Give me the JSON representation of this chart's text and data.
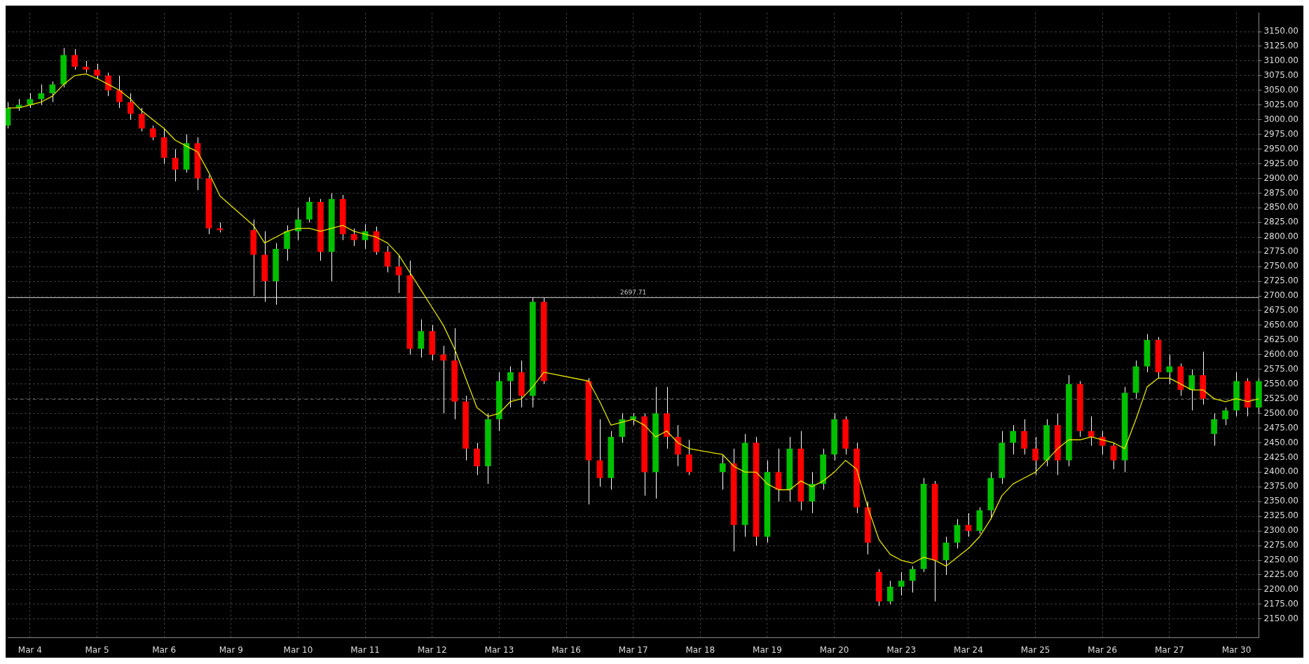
{
  "chart_data": {
    "type": "candlestick",
    "categories": [
      null,
      null,
      "Mar 4",
      null,
      null,
      null,
      null,
      null,
      "Mar 5",
      null,
      null,
      null,
      null,
      null,
      "Mar 6",
      null,
      null,
      null,
      null,
      null,
      "Mar 9",
      null,
      null,
      null,
      null,
      null,
      "Mar 10",
      null,
      null,
      null,
      null,
      null,
      "Mar 11",
      null,
      null,
      null,
      null,
      null,
      "Mar 12",
      null,
      null,
      null,
      null,
      null,
      "Mar 13",
      null,
      null,
      null,
      null,
      null,
      "Mar 16",
      null,
      null,
      null,
      null,
      null,
      "Mar 17",
      null,
      null,
      null,
      null,
      null,
      "Mar 18",
      null,
      null,
      null,
      null,
      null,
      "Mar 19",
      null,
      null,
      null,
      null,
      null,
      "Mar 20",
      null,
      null,
      null,
      null,
      null,
      "Mar 23",
      null,
      null,
      null,
      null,
      null,
      "Mar 24",
      null,
      null,
      null,
      null,
      null,
      "Mar 25",
      null,
      null,
      null,
      null,
      null,
      "Mar 26",
      null,
      null,
      null,
      null,
      null,
      "Mar 27",
      null,
      null,
      null,
      null,
      null,
      "Mar 30",
      null,
      null
    ],
    "ohlc": [
      [
        2990,
        3030,
        2985,
        3020
      ],
      [
        3020,
        3035,
        3015,
        3025
      ],
      [
        3025,
        3045,
        3020,
        3035
      ],
      [
        3035,
        3060,
        3025,
        3045
      ],
      [
        3045,
        3065,
        3030,
        3060
      ],
      [
        3060,
        3122,
        3055,
        3110
      ],
      [
        3110,
        3120,
        3085,
        3090
      ],
      [
        3090,
        3100,
        3080,
        3085
      ],
      [
        3085,
        3095,
        3070,
        3075
      ],
      [
        3075,
        3080,
        3040,
        3050
      ],
      [
        3050,
        3075,
        3020,
        3030
      ],
      [
        3030,
        3045,
        3000,
        3010
      ],
      [
        3010,
        3020,
        2980,
        2985
      ],
      [
        2985,
        2990,
        2965,
        2970
      ],
      [
        2970,
        2985,
        2925,
        2935
      ],
      [
        2935,
        2950,
        2895,
        2915
      ],
      [
        2915,
        2975,
        2910,
        2960
      ],
      [
        2960,
        2970,
        2880,
        2900
      ],
      [
        2900,
        2905,
        2805,
        2815
      ],
      [
        2815,
        2825,
        2808,
        2812
      ],
      null,
      null,
      [
        2812,
        2830,
        2700,
        2770
      ],
      [
        2770,
        2810,
        2690,
        2725
      ],
      [
        2725,
        2790,
        2685,
        2780
      ],
      [
        2780,
        2820,
        2760,
        2810
      ],
      [
        2810,
        2850,
        2795,
        2830
      ],
      [
        2830,
        2868,
        2825,
        2860
      ],
      [
        2860,
        2865,
        2760,
        2775
      ],
      [
        2775,
        2875,
        2725,
        2865
      ],
      [
        2865,
        2872,
        2795,
        2805
      ],
      [
        2805,
        2815,
        2785,
        2795
      ],
      [
        2795,
        2822,
        2780,
        2810
      ],
      [
        2810,
        2818,
        2770,
        2775
      ],
      [
        2775,
        2785,
        2740,
        2750
      ],
      [
        2750,
        2770,
        2705,
        2735
      ],
      [
        2735,
        2760,
        2600,
        2610
      ],
      [
        2610,
        2660,
        2595,
        2640
      ],
      [
        2640,
        2650,
        2590,
        2600
      ],
      [
        2600,
        2615,
        2500,
        2590
      ],
      [
        2590,
        2645,
        2490,
        2520
      ],
      [
        2520,
        2530,
        2420,
        2440
      ],
      [
        2440,
        2450,
        2395,
        2410
      ],
      [
        2410,
        2500,
        2380,
        2490
      ],
      [
        2490,
        2570,
        2470,
        2555
      ],
      [
        2555,
        2580,
        2510,
        2570
      ],
      [
        2570,
        2590,
        2510,
        2530
      ],
      [
        2530,
        2697,
        2510,
        2690
      ],
      [
        2690,
        2697,
        2550,
        2555
      ],
      null,
      null,
      null,
      [
        2555,
        2560,
        2345,
        2420
      ],
      [
        2420,
        2490,
        2375,
        2390
      ],
      [
        2390,
        2470,
        2370,
        2460
      ],
      [
        2460,
        2500,
        2450,
        2490
      ],
      [
        2490,
        2500,
        2480,
        2495
      ],
      [
        2495,
        2500,
        2360,
        2400
      ],
      [
        2400,
        2545,
        2355,
        2500
      ],
      [
        2500,
        2545,
        2440,
        2460
      ],
      [
        2460,
        2480,
        2410,
        2430
      ],
      [
        2430,
        2455,
        2395,
        2400
      ],
      null,
      null,
      [
        2400,
        2430,
        2370,
        2415
      ],
      [
        2415,
        2440,
        2265,
        2310
      ],
      [
        2310,
        2465,
        2290,
        2450
      ],
      [
        2450,
        2460,
        2275,
        2290
      ],
      [
        2290,
        2420,
        2280,
        2400
      ],
      [
        2400,
        2440,
        2350,
        2370
      ],
      [
        2370,
        2460,
        2350,
        2440
      ],
      [
        2440,
        2470,
        2335,
        2350
      ],
      [
        2350,
        2400,
        2330,
        2380
      ],
      [
        2380,
        2440,
        2370,
        2430
      ],
      [
        2430,
        2500,
        2420,
        2490
      ],
      [
        2490,
        2495,
        2430,
        2440
      ],
      [
        2440,
        2450,
        2330,
        2340
      ],
      [
        2340,
        2350,
        2260,
        2280
      ],
      [
        2230,
        2235,
        2172,
        2180
      ],
      [
        2180,
        2215,
        2175,
        2205
      ],
      [
        2205,
        2230,
        2190,
        2215
      ],
      [
        2215,
        2240,
        2195,
        2235
      ],
      [
        2235,
        2390,
        2230,
        2380
      ],
      [
        2380,
        2385,
        2180,
        2250
      ],
      [
        2250,
        2290,
        2225,
        2280
      ],
      [
        2280,
        2320,
        2270,
        2310
      ],
      [
        2310,
        2330,
        2290,
        2300
      ],
      [
        2300,
        2340,
        2295,
        2335
      ],
      [
        2335,
        2400,
        2320,
        2390
      ],
      [
        2390,
        2470,
        2380,
        2450
      ],
      [
        2450,
        2480,
        2430,
        2470
      ],
      [
        2470,
        2490,
        2430,
        2440
      ],
      [
        2440,
        2460,
        2395,
        2420
      ],
      [
        2420,
        2490,
        2410,
        2480
      ],
      [
        2480,
        2500,
        2395,
        2420
      ],
      [
        2420,
        2565,
        2410,
        2550
      ],
      [
        2550,
        2555,
        2460,
        2470
      ],
      [
        2470,
        2495,
        2445,
        2460
      ],
      [
        2460,
        2470,
        2430,
        2445
      ],
      [
        2445,
        2450,
        2405,
        2420
      ],
      [
        2420,
        2545,
        2400,
        2535
      ],
      [
        2535,
        2590,
        2525,
        2580
      ],
      [
        2580,
        2635,
        2570,
        2625
      ],
      [
        2625,
        2630,
        2560,
        2570
      ],
      [
        2570,
        2600,
        2550,
        2580
      ],
      [
        2580,
        2585,
        2530,
        2540
      ],
      [
        2540,
        2575,
        2505,
        2565
      ],
      [
        2565,
        2605,
        2515,
        2525
      ],
      [
        2465,
        2500,
        2445,
        2490
      ],
      [
        2490,
        2510,
        2480,
        2505
      ],
      [
        2505,
        2570,
        2495,
        2555
      ],
      [
        2555,
        2560,
        2495,
        2510
      ],
      [
        2510,
        2560,
        2500,
        2555
      ]
    ],
    "series": [
      {
        "type": "line",
        "color": "#e6e600",
        "values": [
          3020,
          3020,
          3025,
          3030,
          3040,
          3060,
          3075,
          3078,
          3070,
          3060,
          3050,
          3035,
          3015,
          3000,
          2985,
          2965,
          2955,
          2945,
          2910,
          2870,
          null,
          null,
          2820,
          2790,
          2800,
          2810,
          2815,
          2815,
          2810,
          2815,
          2820,
          2810,
          2805,
          2800,
          2790,
          2770,
          2740,
          2710,
          2680,
          2650,
          2610,
          2560,
          2510,
          2495,
          2500,
          2520,
          2525,
          2545,
          2570,
          null,
          null,
          null,
          2555,
          2520,
          2480,
          2485,
          2490,
          2480,
          2460,
          2470,
          2450,
          2440,
          null,
          null,
          2430,
          2410,
          2400,
          2400,
          2380,
          2370,
          2370,
          2385,
          2375,
          2385,
          2400,
          2420,
          2405,
          2340,
          2285,
          2260,
          2250,
          2245,
          2255,
          2250,
          2240,
          2255,
          2270,
          2290,
          2320,
          2360,
          2380,
          2390,
          2400,
          2420,
          2440,
          2455,
          2455,
          2460,
          2455,
          2450,
          2440,
          2490,
          2545,
          2560,
          2560,
          2550,
          2540,
          2540,
          2525,
          2520,
          2525,
          2520,
          2525
        ]
      }
    ],
    "ylim": [
      2118,
      3182
    ],
    "yticks": [
      {
        "value": 2150,
        "label": "2150.00"
      },
      {
        "value": 2175,
        "label": "2175.00"
      },
      {
        "value": 2200,
        "label": "2200.00"
      },
      {
        "value": 2225,
        "label": "2225.00"
      },
      {
        "value": 2250,
        "label": "2250.00"
      },
      {
        "value": 2275,
        "label": "2275.00"
      },
      {
        "value": 2300,
        "label": "2300.00"
      },
      {
        "value": 2325,
        "label": "2325.00"
      },
      {
        "value": 2350,
        "label": "2350.00"
      },
      {
        "value": 2375,
        "label": "2375.00"
      },
      {
        "value": 2400,
        "label": "2400.00"
      },
      {
        "value": 2425,
        "label": "2425.00"
      },
      {
        "value": 2450,
        "label": "2450.00"
      },
      {
        "value": 2475,
        "label": "2475.00"
      },
      {
        "value": 2500,
        "label": "2500.00"
      },
      {
        "value": 2525,
        "label": "2525.00"
      },
      {
        "value": 2550,
        "label": "2550.00"
      },
      {
        "value": 2575,
        "label": "2575.00"
      },
      {
        "value": 2600,
        "label": "2600.00"
      },
      {
        "value": 2625,
        "label": "2625.00"
      },
      {
        "value": 2650,
        "label": "2650.00"
      },
      {
        "value": 2675,
        "label": "2675.00"
      },
      {
        "value": 2700,
        "label": "2700.00"
      },
      {
        "value": 2725,
        "label": "2725.00"
      },
      {
        "value": 2750,
        "label": "2750.00"
      },
      {
        "value": 2775,
        "label": "2775.00"
      },
      {
        "value": 2800,
        "label": "2800.00"
      },
      {
        "value": 2825,
        "label": "2825.00"
      },
      {
        "value": 2850,
        "label": "2850.00"
      },
      {
        "value": 2875,
        "label": "2875.00"
      },
      {
        "value": 2900,
        "label": "2900.00"
      },
      {
        "value": 2925,
        "label": "2925.00"
      },
      {
        "value": 2950,
        "label": "2950.00"
      },
      {
        "value": 2975,
        "label": "2975.00"
      },
      {
        "value": 3000,
        "label": "3000.00"
      },
      {
        "value": 3025,
        "label": "3025.00"
      },
      {
        "value": 3050,
        "label": "3050.00"
      },
      {
        "value": 3075,
        "label": "3075.00"
      },
      {
        "value": 3100,
        "label": "3100.00"
      },
      {
        "value": 3125,
        "label": "3125.00"
      },
      {
        "value": 3150,
        "label": "3150.00"
      }
    ],
    "ref_lines": [
      {
        "axis": "y",
        "value": 2697.71,
        "label": "2697.71",
        "color": "#c8c8c8"
      },
      {
        "axis": "y",
        "value": 2525,
        "color": "#5a5a5a",
        "line_style": "dashed"
      }
    ],
    "grid": true
  }
}
